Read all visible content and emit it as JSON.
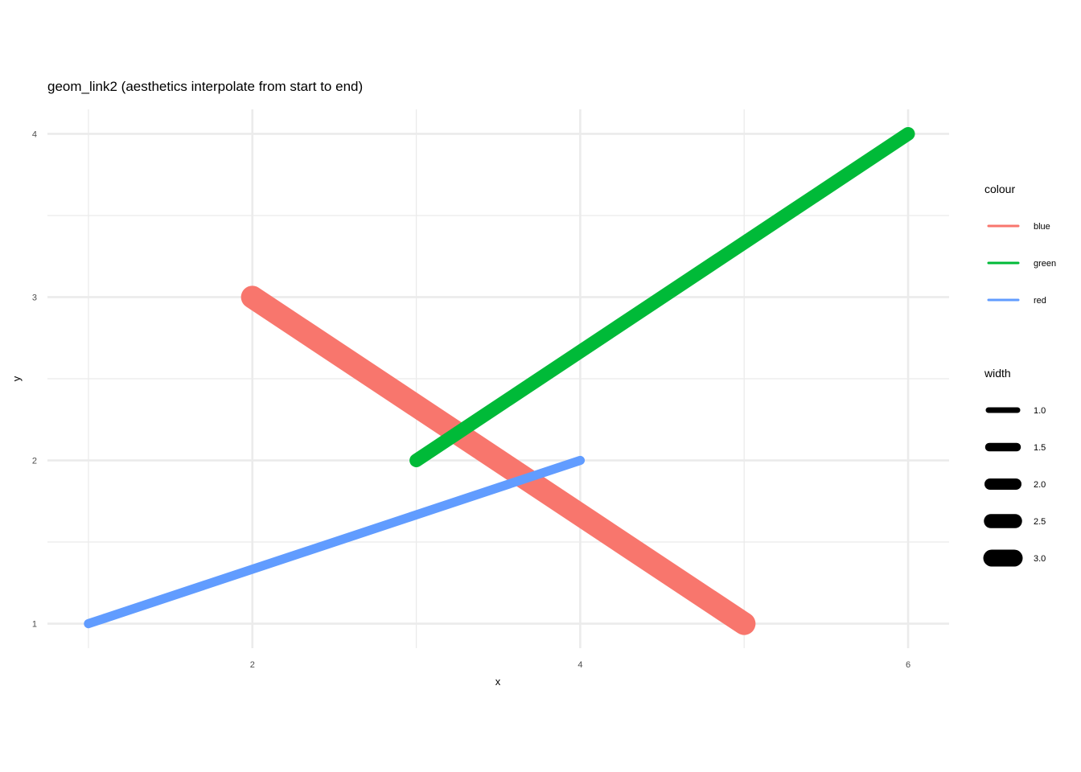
{
  "chart_data": {
    "type": "line",
    "title": "geom_link2 (aesthetics interpolate from start to end)",
    "xlabel": "x",
    "ylabel": "y",
    "xlim": [
      0.75,
      6.25
    ],
    "ylim": [
      0.85,
      4.15
    ],
    "x_ticks": [
      2,
      4,
      6
    ],
    "y_ticks": [
      1,
      2,
      3,
      4
    ],
    "x_tick_labels": [
      "2",
      "4",
      "6"
    ],
    "y_tick_labels": [
      "1",
      "2",
      "3",
      "4"
    ],
    "grid": true,
    "legend_position": "right",
    "series": [
      {
        "name": "blue",
        "color": "#F8766D",
        "x": [
          2,
          5
        ],
        "y": [
          3,
          1
        ],
        "width": [
          2.5,
          2.5
        ]
      },
      {
        "name": "green",
        "color": "#00BA38",
        "x": [
          3,
          6
        ],
        "y": [
          2,
          4
        ],
        "width": [
          1.5,
          1.5
        ]
      },
      {
        "name": "red",
        "color": "#619CFF",
        "x": [
          1,
          4
        ],
        "y": [
          1,
          2
        ],
        "width": [
          1.0,
          1.0
        ]
      }
    ],
    "legend": {
      "colour_title": "colour",
      "colour_entries": [
        {
          "label": "blue",
          "color": "#F8766D"
        },
        {
          "label": "green",
          "color": "#00BA38"
        },
        {
          "label": "red",
          "color": "#619CFF"
        }
      ],
      "width_title": "width",
      "width_entries": [
        {
          "label": "1.0",
          "value": 1.0
        },
        {
          "label": "1.5",
          "value": 1.5
        },
        {
          "label": "2.0",
          "value": 2.0
        },
        {
          "label": "2.5",
          "value": 2.5
        },
        {
          "label": "3.0",
          "value": 3.0
        }
      ]
    }
  }
}
